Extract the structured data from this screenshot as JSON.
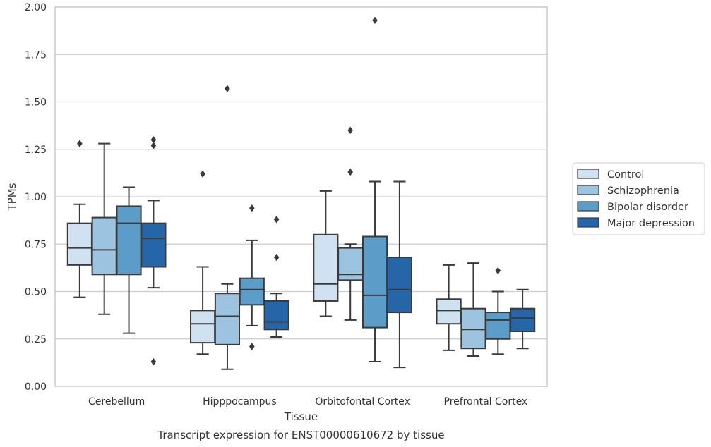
{
  "chart_data": {
    "type": "box",
    "title": "",
    "caption": "Transcript expression for ENST00000610672 by tissue",
    "xlabel": "Tissue",
    "ylabel": "TPMs",
    "ylim": [
      0,
      2.0
    ],
    "yticks": [
      "0.00",
      "0.25",
      "0.50",
      "0.75",
      "1.00",
      "1.25",
      "1.50",
      "1.75",
      "2.00"
    ],
    "grid": "horizontal",
    "legend_position": "right",
    "categories": [
      "Cerebellum",
      "Hipppocampus",
      "Orbitofontal Cortex",
      "Prefrontal Cortex"
    ],
    "series": [
      {
        "name": "Control",
        "color": "#d0e1f2",
        "boxes": [
          {
            "whisker_low": 0.47,
            "q1": 0.64,
            "median": 0.73,
            "q3": 0.86,
            "whisker_high": 0.96,
            "outliers": [
              1.28
            ]
          },
          {
            "whisker_low": 0.17,
            "q1": 0.23,
            "median": 0.33,
            "q3": 0.4,
            "whisker_high": 0.63,
            "outliers": [
              1.12
            ]
          },
          {
            "whisker_low": 0.37,
            "q1": 0.45,
            "median": 0.54,
            "q3": 0.8,
            "whisker_high": 1.03,
            "outliers": []
          },
          {
            "whisker_low": 0.19,
            "q1": 0.33,
            "median": 0.4,
            "q3": 0.46,
            "whisker_high": 0.64,
            "outliers": []
          }
        ]
      },
      {
        "name": "Schizophrenia",
        "color": "#9cc4e0",
        "boxes": [
          {
            "whisker_low": 0.38,
            "q1": 0.59,
            "median": 0.72,
            "q3": 0.89,
            "whisker_high": 1.28,
            "outliers": []
          },
          {
            "whisker_low": 0.09,
            "q1": 0.22,
            "median": 0.37,
            "q3": 0.49,
            "whisker_high": 0.54,
            "outliers": [
              1.57
            ]
          },
          {
            "whisker_low": 0.35,
            "q1": 0.56,
            "median": 0.59,
            "q3": 0.73,
            "whisker_high": 0.75,
            "outliers": [
              1.35,
              1.13
            ]
          },
          {
            "whisker_low": 0.16,
            "q1": 0.2,
            "median": 0.3,
            "q3": 0.41,
            "whisker_high": 0.65,
            "outliers": []
          }
        ]
      },
      {
        "name": "Bipolar disorder",
        "color": "#5b9cc9",
        "boxes": [
          {
            "whisker_low": 0.28,
            "q1": 0.59,
            "median": 0.86,
            "q3": 0.95,
            "whisker_high": 1.05,
            "outliers": []
          },
          {
            "whisker_low": 0.32,
            "q1": 0.43,
            "median": 0.51,
            "q3": 0.57,
            "whisker_high": 0.77,
            "outliers": [
              0.94,
              0.21
            ]
          },
          {
            "whisker_low": 0.13,
            "q1": 0.31,
            "median": 0.48,
            "q3": 0.79,
            "whisker_high": 1.08,
            "outliers": [
              1.93
            ]
          },
          {
            "whisker_low": 0.17,
            "q1": 0.25,
            "median": 0.35,
            "q3": 0.39,
            "whisker_high": 0.5,
            "outliers": [
              0.61
            ]
          }
        ]
      },
      {
        "name": "Major depression",
        "color": "#2565a8",
        "boxes": [
          {
            "whisker_low": 0.52,
            "q1": 0.63,
            "median": 0.78,
            "q3": 0.86,
            "whisker_high": 0.98,
            "outliers": [
              1.3,
              1.27,
              0.13
            ]
          },
          {
            "whisker_low": 0.26,
            "q1": 0.3,
            "median": 0.34,
            "q3": 0.45,
            "whisker_high": 0.49,
            "outliers": [
              0.88,
              0.68
            ]
          },
          {
            "whisker_low": 0.1,
            "q1": 0.39,
            "median": 0.51,
            "q3": 0.68,
            "whisker_high": 1.08,
            "outliers": []
          },
          {
            "whisker_low": 0.2,
            "q1": 0.29,
            "median": 0.36,
            "q3": 0.41,
            "whisker_high": 0.51,
            "outliers": []
          }
        ]
      }
    ]
  }
}
